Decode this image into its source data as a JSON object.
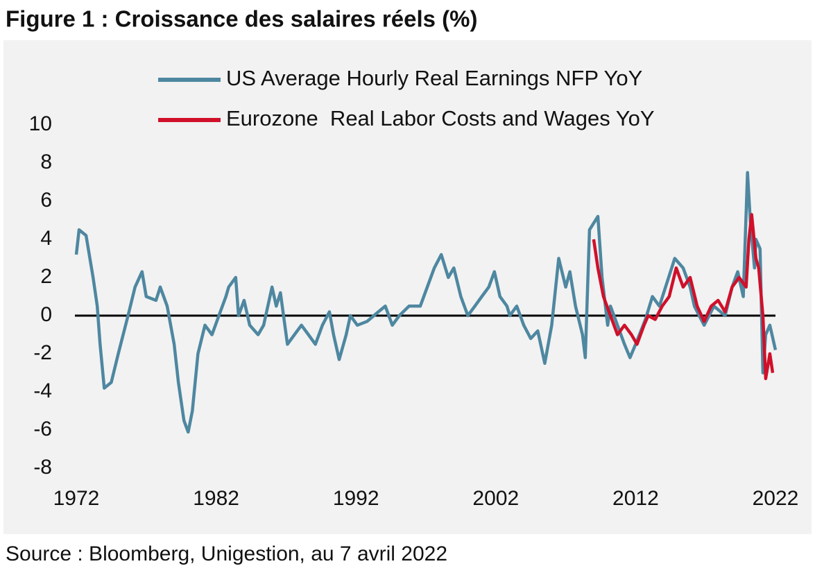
{
  "chart_data": {
    "type": "line",
    "title": "Figure 1 : Croissance des salaires réels (%)",
    "source": "Source : Bloomberg, Unigestion, au 7 avril 2022",
    "xlim": [
      1972,
      2022
    ],
    "xticks": [
      1972,
      1982,
      1992,
      2002,
      2012,
      2022
    ],
    "ylim": [
      -8,
      10
    ],
    "yticks": [
      -8,
      -6,
      -4,
      -2,
      0,
      2,
      4,
      6,
      8,
      10
    ],
    "grid": false,
    "legend": "top",
    "series": [
      {
        "name": "US Average Hourly Real Earnings NFP YoY",
        "color": "#4e87a0",
        "x": [
          1972.0,
          1972.2,
          1972.7,
          1973.2,
          1973.5,
          1973.7,
          1974.0,
          1974.5,
          1975.0,
          1975.7,
          1976.2,
          1976.7,
          1977.0,
          1977.7,
          1978.0,
          1978.5,
          1979.0,
          1979.3,
          1979.7,
          1980.0,
          1980.3,
          1980.7,
          1981.2,
          1981.7,
          1982.2,
          1982.7,
          1982.9,
          1983.4,
          1983.6,
          1984.0,
          1984.4,
          1985.0,
          1985.4,
          1986.0,
          1986.3,
          1986.6,
          1987.1,
          1987.6,
          1988.1,
          1988.6,
          1989.1,
          1989.6,
          1990.1,
          1990.4,
          1990.8,
          1991.3,
          1991.6,
          1992.1,
          1992.8,
          1993.6,
          1994.1,
          1994.6,
          1995.1,
          1995.8,
          1996.6,
          1997.1,
          1997.6,
          1998.1,
          1998.6,
          1999.0,
          1999.5,
          2000.0,
          2000.5,
          2001.0,
          2001.5,
          2001.9,
          2002.3,
          2002.8,
          2003.0,
          2003.5,
          2004.0,
          2004.5,
          2005.0,
          2005.5,
          2006.0,
          2006.5,
          2007.0,
          2007.3,
          2007.7,
          2008.2,
          2008.4,
          2008.7,
          2009.3,
          2009.6,
          2010.0,
          2010.2,
          2010.7,
          2011.2,
          2011.6,
          2012.0,
          2012.7,
          2013.2,
          2013.7,
          2014.8,
          2015.4,
          2015.9,
          2016.2,
          2016.9,
          2017.6,
          2018.4,
          2018.9,
          2019.3,
          2019.7,
          2020.0,
          2020.2,
          2020.5,
          2020.6,
          2020.9,
          2021.1,
          2021.3,
          2021.6,
          2022.0
        ],
        "values": [
          3.2,
          4.5,
          4.2,
          2.0,
          0.5,
          -1.5,
          -3.8,
          -3.5,
          -2.0,
          0.0,
          1.5,
          2.3,
          1.0,
          0.8,
          1.5,
          0.5,
          -1.5,
          -3.5,
          -5.5,
          -6.1,
          -5.0,
          -2.0,
          -0.5,
          -1.0,
          0.0,
          1.0,
          1.5,
          2.0,
          0.0,
          0.8,
          -0.5,
          -1.0,
          -0.5,
          1.5,
          0.5,
          1.2,
          -1.5,
          -1.0,
          -0.5,
          -1.0,
          -1.5,
          -0.5,
          0.2,
          -1.0,
          -2.3,
          -1.0,
          0.0,
          -0.5,
          -0.3,
          0.2,
          0.5,
          -0.5,
          0.0,
          0.5,
          0.5,
          1.5,
          2.5,
          3.2,
          2.0,
          2.5,
          1.0,
          0.0,
          0.5,
          1.0,
          1.5,
          2.3,
          1.0,
          0.5,
          0.0,
          0.5,
          -0.5,
          -1.2,
          -0.8,
          -2.5,
          -0.5,
          3.0,
          1.5,
          2.3,
          0.5,
          -1.0,
          -2.2,
          4.5,
          5.2,
          2.0,
          -0.5,
          0.5,
          -0.5,
          -1.5,
          -2.2,
          -1.5,
          -0.2,
          1.0,
          0.5,
          3.0,
          2.5,
          1.5,
          0.5,
          -0.5,
          0.5,
          0.0,
          1.5,
          2.3,
          1.0,
          7.5,
          5.0,
          2.5,
          4.0,
          3.5,
          -3.0,
          -1.0,
          -0.5,
          -1.8
        ]
      },
      {
        "name": "Eurozone  Real Labor Costs and Wages YoY",
        "color": "#d0102a",
        "x": [
          2009.0,
          2009.3,
          2009.7,
          2010.2,
          2010.7,
          2011.2,
          2011.7,
          2012.1,
          2012.6,
          2012.9,
          2013.4,
          2013.9,
          2014.4,
          2014.9,
          2015.4,
          2015.9,
          2016.4,
          2016.9,
          2017.4,
          2017.9,
          2018.4,
          2018.9,
          2019.4,
          2019.9,
          2020.1,
          2020.3,
          2020.6,
          2020.8,
          2021.1,
          2021.3,
          2021.6,
          2021.8
        ],
        "values": [
          4.0,
          2.5,
          1.0,
          0.0,
          -1.0,
          -0.5,
          -1.0,
          -1.5,
          -0.5,
          0.0,
          -0.2,
          0.5,
          1.0,
          2.5,
          1.5,
          2.0,
          0.5,
          -0.3,
          0.5,
          0.8,
          0.2,
          1.5,
          2.0,
          1.5,
          4.0,
          5.3,
          3.0,
          2.5,
          0.0,
          -3.3,
          -2.0,
          -3.0
        ]
      }
    ]
  }
}
